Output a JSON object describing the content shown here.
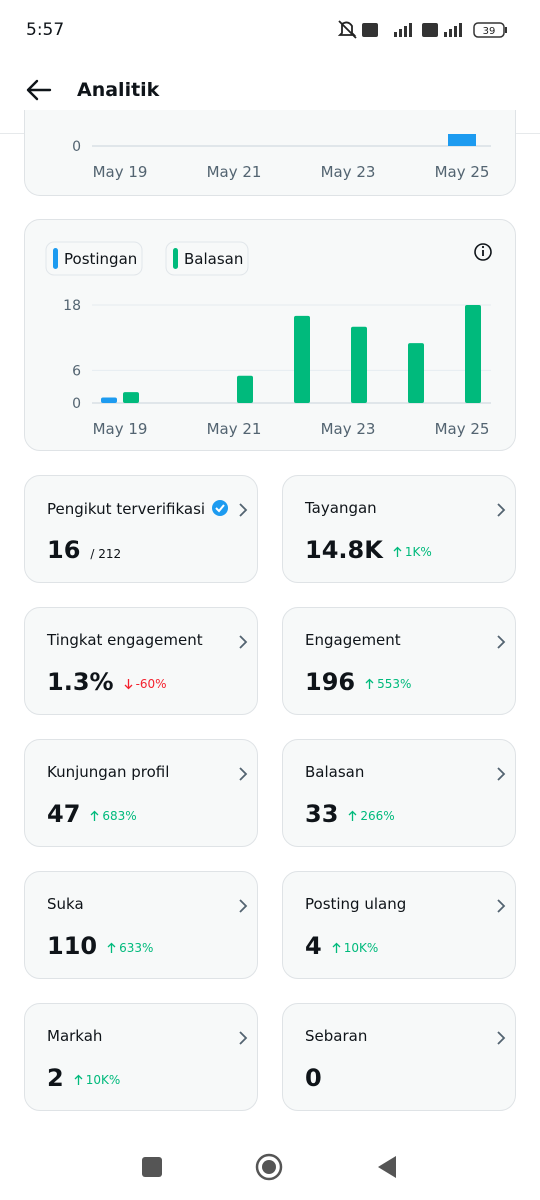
{
  "status_bar": {
    "time": "5:57",
    "battery": "39"
  },
  "header": {
    "title": "Analitik"
  },
  "chart_data": [
    {
      "type": "bar",
      "categories": [
        "May 19",
        null,
        "May 21",
        null,
        "May 23",
        null,
        "May 25"
      ],
      "yticks": [
        0
      ]
    },
    {
      "type": "bar",
      "categories": [
        "May 19",
        null,
        "May 21",
        null,
        "May 23",
        null,
        "May 25"
      ],
      "series": [
        {
          "name": "Postingan",
          "color": "#1d9bf0",
          "values": [
            1,
            0,
            0,
            0,
            0,
            0,
            0
          ]
        },
        {
          "name": "Balasan",
          "color": "#00ba7c",
          "values": [
            2,
            0,
            5,
            16,
            14,
            11,
            18
          ]
        }
      ],
      "ylim": [
        0,
        18
      ],
      "yticks": [
        0,
        6,
        18
      ],
      "grid": true
    }
  ],
  "cards": [
    {
      "label": "Pengikut terverifikasi",
      "value": "16",
      "sub": "/ 212",
      "verified": true
    },
    {
      "label": "Tayangan",
      "value": "14.8K",
      "change": "1K%",
      "trend": "up"
    },
    {
      "label": "Tingkat engagement",
      "value": "1.3%",
      "change": "-60%",
      "trend": "down"
    },
    {
      "label": "Engagement",
      "value": "196",
      "change": "553%",
      "trend": "up"
    },
    {
      "label": "Kunjungan profil",
      "value": "47",
      "change": "683%",
      "trend": "up"
    },
    {
      "label": "Balasan",
      "value": "33",
      "change": "266%",
      "trend": "up"
    },
    {
      "label": "Suka",
      "value": "110",
      "change": "633%",
      "trend": "up"
    },
    {
      "label": "Posting ulang",
      "value": "4",
      "change": "10K%",
      "trend": "up"
    },
    {
      "label": "Markah",
      "value": "2",
      "change": "10K%",
      "trend": "up"
    },
    {
      "label": "Sebaran",
      "value": "0"
    }
  ]
}
